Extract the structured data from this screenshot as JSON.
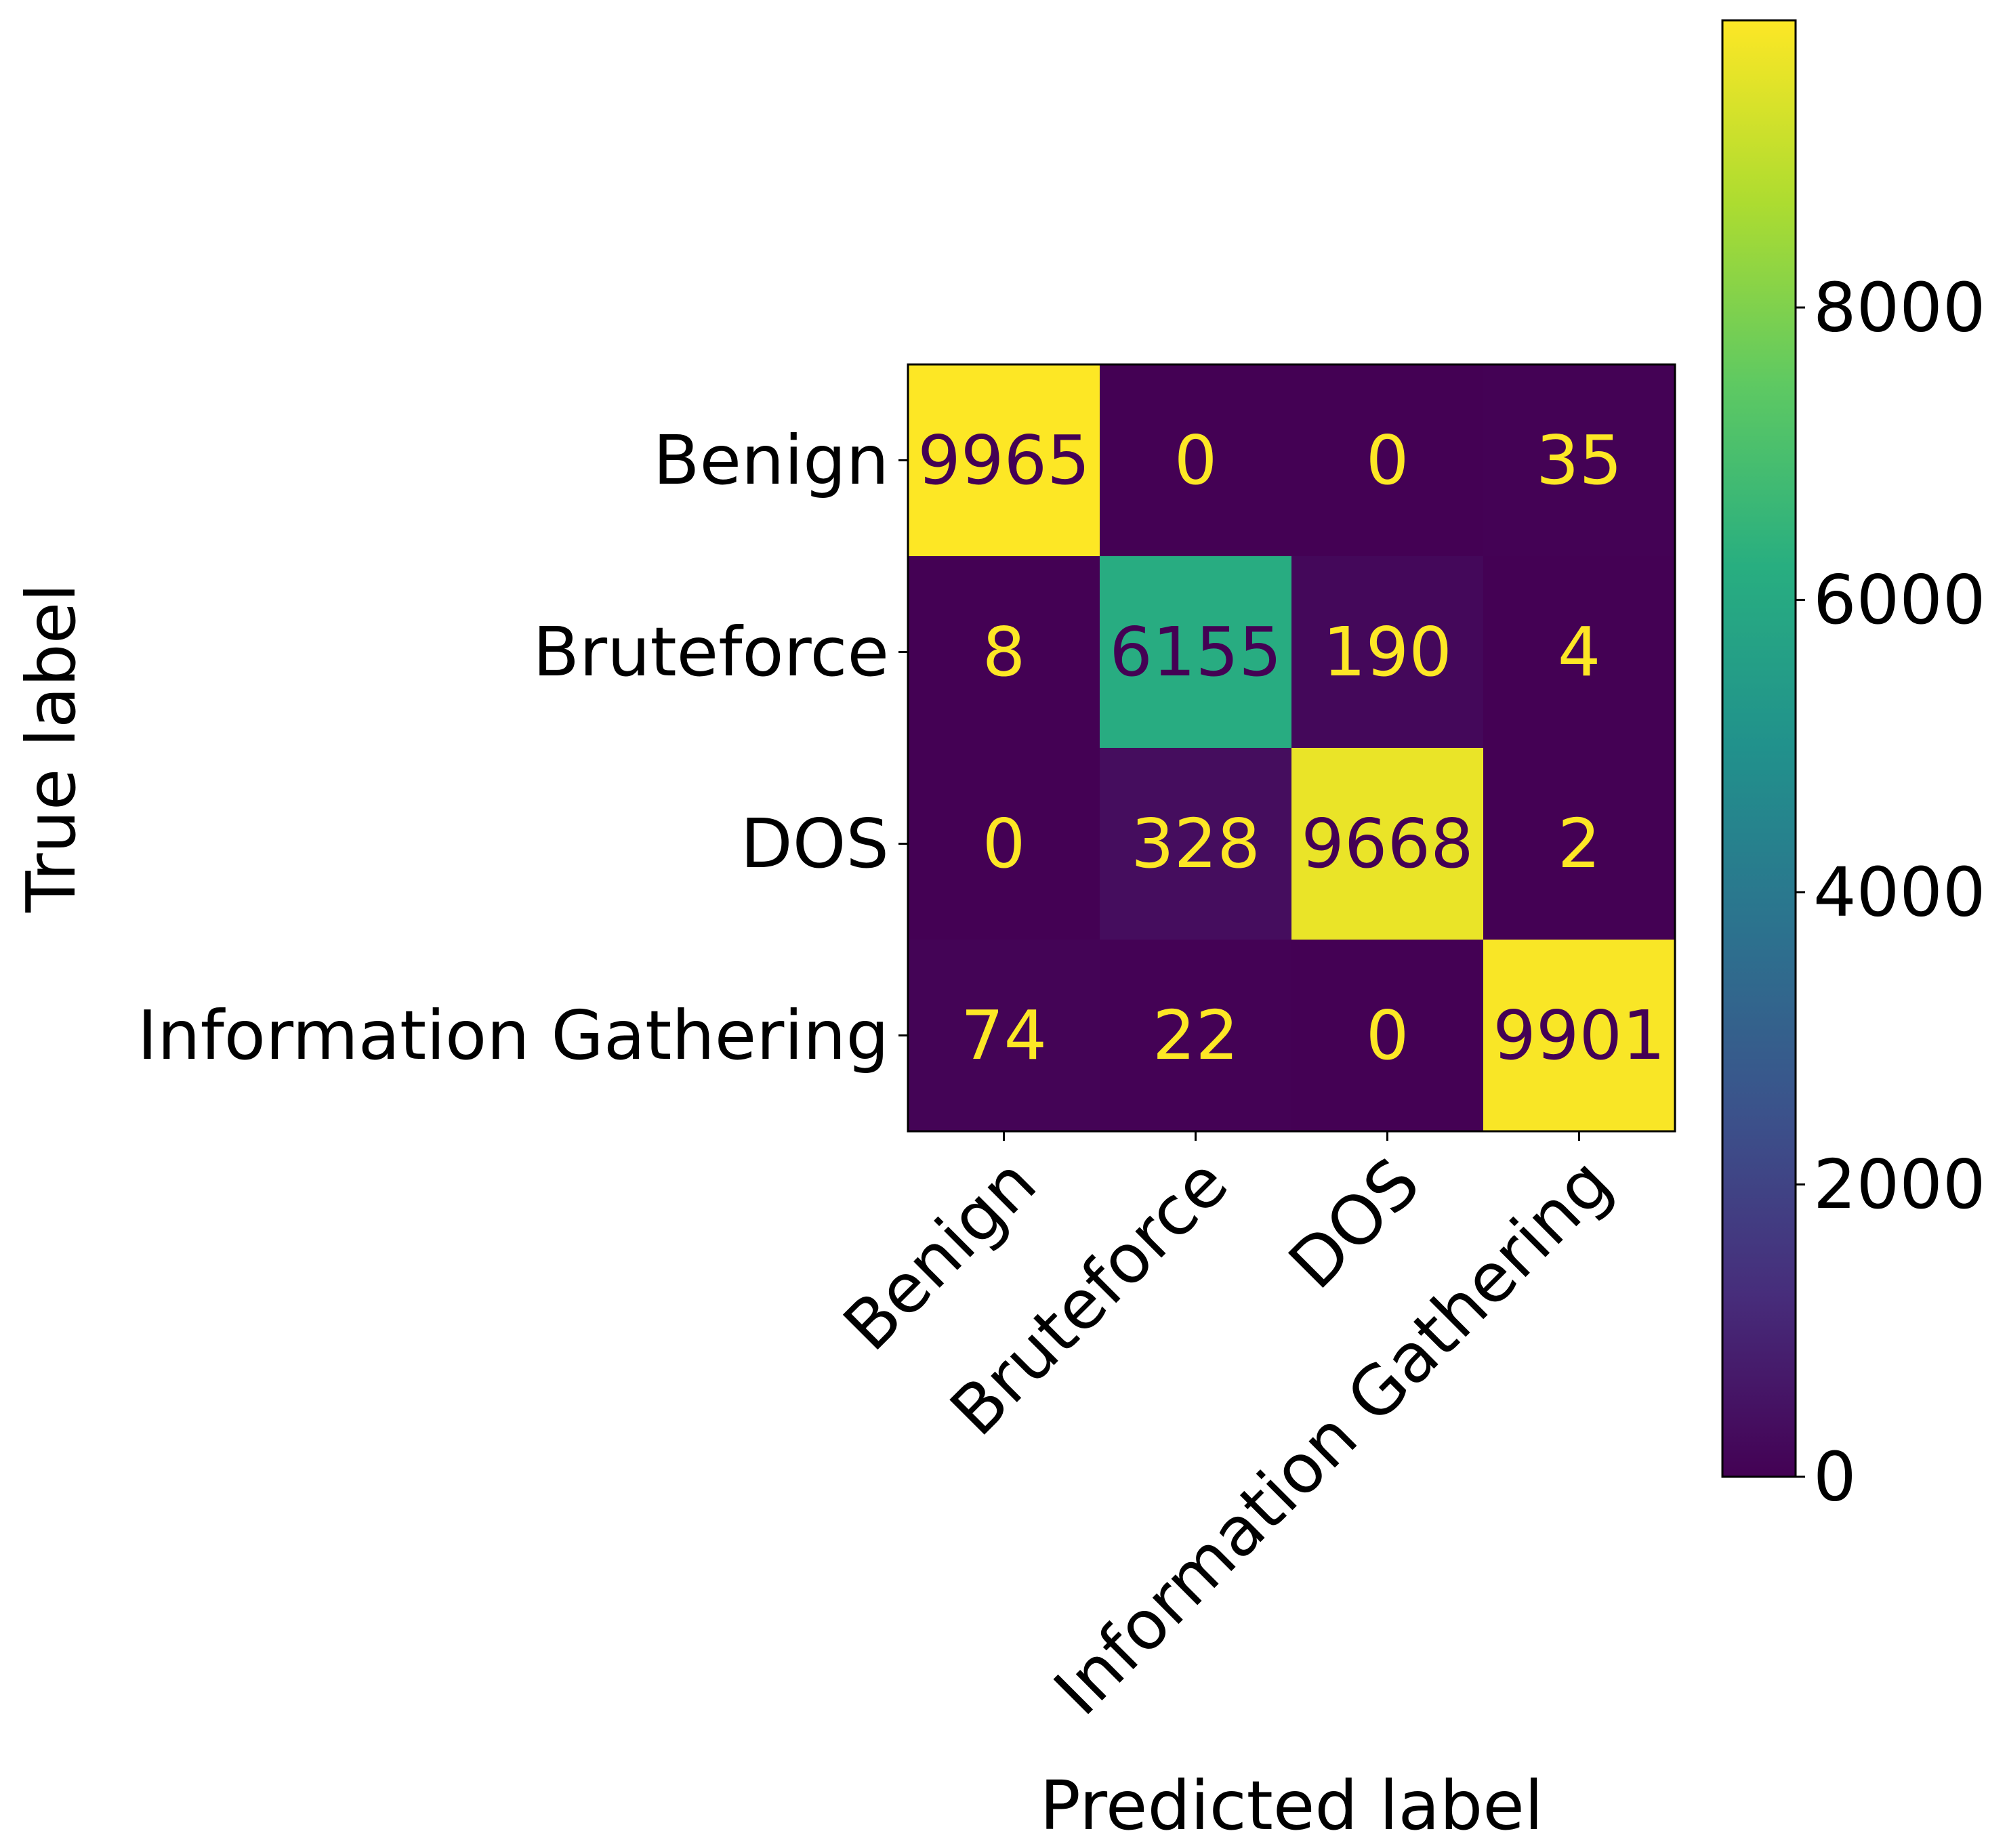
{
  "chart_data": {
    "type": "heatmap",
    "title": "",
    "xlabel": "Predicted label",
    "ylabel": "True label",
    "x_categories": [
      "Benign",
      "Bruteforce",
      "DOS",
      "Information Gathering"
    ],
    "y_categories": [
      "Benign",
      "Bruteforce",
      "DOS",
      "Information Gathering"
    ],
    "matrix": [
      [
        9965,
        0,
        0,
        35
      ],
      [
        8,
        6155,
        190,
        4
      ],
      [
        0,
        328,
        9668,
        2
      ],
      [
        74,
        22,
        0,
        9901
      ]
    ],
    "colormap": "viridis",
    "colorbar": {
      "min": 0,
      "max": 9965,
      "ticks": [
        0,
        2000,
        4000,
        6000,
        8000
      ],
      "tick_labels": [
        "0",
        "2000",
        "4000",
        "6000",
        "8000"
      ]
    },
    "x_tick_rotation_deg": 45,
    "grid": false,
    "colors": {
      "text_on_dark": "#fde725",
      "text_on_light": "#440154",
      "axis": "#000000"
    }
  }
}
